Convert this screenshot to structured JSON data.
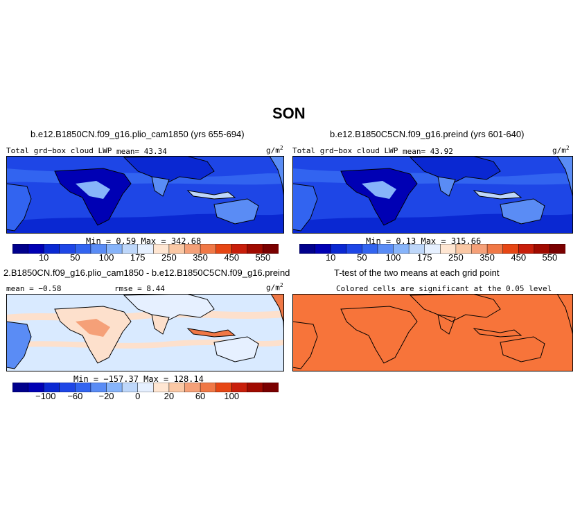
{
  "figure": {
    "title": "SON"
  },
  "panels": {
    "top_left": {
      "title": "b.e12.B1850CN.f09_g16.plio_cam1850 (yrs 655-694)",
      "label": "Total grd−box cloud LWP",
      "mean": "mean=   43.34",
      "units": "g/m",
      "units_exp": "2",
      "minmax": "Min =    0.59  Max =  342.68"
    },
    "top_right": {
      "title": "b.e12.B1850C5CN.f09_g16.preind (yrs 601-640)",
      "label": "Total grd−box cloud LWP",
      "mean": "mean=   43.92",
      "units": "g/m",
      "units_exp": "2",
      "minmax": "Min =    0.13  Max =  315.66"
    },
    "bottom_left": {
      "title": "2.B1850CN.f09_g16.plio_cam1850 - b.e12.B1850C5CN.f09_g16.preind",
      "mean": "mean =  −0.58",
      "rmse": "rmse =   8.44",
      "units": "g/m",
      "units_exp": "2",
      "minmax": "Min = −157.37  Max =  128.14"
    },
    "bottom_right": {
      "title": "T-test of the two means at each grid point",
      "label": "Colored cells are significant at the 0.05 level"
    }
  },
  "colorbars": {
    "lwp": {
      "colors": [
        "#00008c",
        "#0000b4",
        "#0a28d2",
        "#1e46e6",
        "#3264f0",
        "#5a8cf5",
        "#87b4fa",
        "#bed7fa",
        "#e6f0ff",
        "#ffe6d2",
        "#fac8a5",
        "#f5a078",
        "#f07846",
        "#e64614",
        "#c81e0a",
        "#a00a00",
        "#7a0000"
      ],
      "labels": [
        "10",
        "50",
        "100",
        "175",
        "250",
        "350",
        "450",
        "550"
      ]
    },
    "diff": {
      "colors": [
        "#00008c",
        "#0000b4",
        "#0a28d2",
        "#1e46e6",
        "#3264f0",
        "#5a8cf5",
        "#87b4fa",
        "#bed7fa",
        "#e6f0ff",
        "#ffe6d2",
        "#fac8a5",
        "#f5a078",
        "#f07846",
        "#e64614",
        "#c81e0a",
        "#a00a00",
        "#7a0000"
      ],
      "labels": [
        "−100",
        "−60",
        "−20",
        "0",
        "20",
        "60",
        "100"
      ]
    }
  },
  "map_colors": {
    "lwp_ocean": "#1e46e6",
    "lwp_deep": "#0a28d2",
    "lwp_land_low": "#5a8cf5",
    "lwp_land_dark": "#0000b4",
    "diff_bg": "#d9eaff",
    "diff_pos": "#fde0cc",
    "diff_neg": "#a9c8f5",
    "ttest_fill": "#f7743a"
  }
}
